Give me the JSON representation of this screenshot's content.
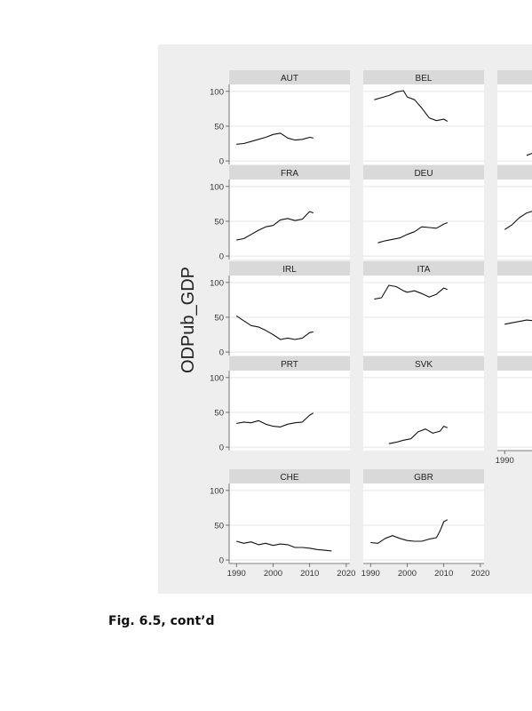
{
  "figure": {
    "ylabel": "ODPub_GDP",
    "caption": "Fig. 6.5, cont’d",
    "x_ticks": [
      1990,
      2000,
      2010,
      2020
    ],
    "y_ticks": [
      0,
      50,
      100
    ]
  },
  "chart_data": [
    {
      "type": "line",
      "title": "AUT",
      "ylim": [
        -5,
        110
      ],
      "xlim": [
        1988,
        2021
      ],
      "x": [
        1990,
        1992,
        1994,
        1996,
        1998,
        2000,
        2002,
        2004,
        2006,
        2008,
        2010,
        2011
      ],
      "values": [
        24,
        25,
        28,
        31,
        34,
        38,
        40,
        33,
        30,
        31,
        34,
        33
      ]
    },
    {
      "type": "line",
      "title": "BEL",
      "ylim": [
        -5,
        110
      ],
      "xlim": [
        1988,
        2021
      ],
      "x": [
        1991,
        1993,
        1995,
        1997,
        1999,
        2000,
        2002,
        2004,
        2006,
        2008,
        2010,
        2011
      ],
      "values": [
        88,
        91,
        94,
        99,
        101,
        92,
        88,
        76,
        62,
        58,
        60,
        57
      ]
    },
    {
      "type": "line",
      "title": "",
      "ylim": [
        -5,
        110
      ],
      "xlim": [
        1988,
        2021
      ],
      "x": [
        1996,
        1998,
        2000
      ],
      "values": [
        8,
        12,
        20
      ]
    },
    {
      "type": "line",
      "title": "FRA",
      "ylim": [
        -5,
        110
      ],
      "xlim": [
        1988,
        2021
      ],
      "x": [
        1990,
        1992,
        1994,
        1996,
        1998,
        2000,
        2002,
        2004,
        2006,
        2008,
        2010,
        2011
      ],
      "values": [
        23,
        25,
        31,
        37,
        42,
        44,
        52,
        54,
        51,
        53,
        64,
        62
      ]
    },
    {
      "type": "line",
      "title": "DEU",
      "ylim": [
        -5,
        110
      ],
      "xlim": [
        1988,
        2021
      ],
      "x": [
        1992,
        1994,
        1996,
        1998,
        2000,
        2002,
        2004,
        2006,
        2008,
        2010,
        2011
      ],
      "values": [
        19,
        22,
        24,
        26,
        31,
        35,
        42,
        41,
        40,
        46,
        48
      ]
    },
    {
      "type": "line",
      "title": "",
      "ylim": [
        -5,
        110
      ],
      "xlim": [
        1988,
        2021
      ],
      "x": [
        1990,
        1992,
        1994,
        1996,
        1998,
        2000
      ],
      "values": [
        38,
        45,
        55,
        62,
        65,
        68
      ]
    },
    {
      "type": "line",
      "title": "IRL",
      "ylim": [
        -5,
        110
      ],
      "xlim": [
        1988,
        2021
      ],
      "x": [
        1990,
        1992,
        1994,
        1996,
        1998,
        2000,
        2002,
        2004,
        2006,
        2008,
        2010,
        2011
      ],
      "values": [
        52,
        45,
        38,
        36,
        31,
        25,
        18,
        20,
        18,
        20,
        28,
        29
      ]
    },
    {
      "type": "line",
      "title": "ITA",
      "ylim": [
        -5,
        110
      ],
      "xlim": [
        1988,
        2021
      ],
      "x": [
        1991,
        1993,
        1995,
        1997,
        1999,
        2000,
        2002,
        2004,
        2006,
        2008,
        2010,
        2011
      ],
      "values": [
        76,
        78,
        96,
        94,
        88,
        86,
        88,
        84,
        79,
        83,
        92,
        90
      ]
    },
    {
      "type": "line",
      "title": "",
      "ylim": [
        -5,
        110
      ],
      "xlim": [
        1988,
        2021
      ],
      "x": [
        1990,
        1992,
        1994,
        1996,
        1998,
        2000
      ],
      "values": [
        40,
        42,
        44,
        46,
        45,
        46
      ]
    },
    {
      "type": "line",
      "title": "PRT",
      "ylim": [
        -5,
        110
      ],
      "xlim": [
        1988,
        2021
      ],
      "x": [
        1990,
        1992,
        1994,
        1996,
        1998,
        2000,
        2002,
        2004,
        2006,
        2008,
        2010,
        2011
      ],
      "values": [
        34,
        36,
        35,
        38,
        33,
        30,
        29,
        33,
        35,
        36,
        46,
        49
      ]
    },
    {
      "type": "line",
      "title": "SVK",
      "ylim": [
        -5,
        110
      ],
      "xlim": [
        1988,
        2021
      ],
      "x": [
        1995,
        1997,
        1999,
        2001,
        2003,
        2005,
        2007,
        2009,
        2010,
        2011
      ],
      "values": [
        5,
        7,
        10,
        12,
        22,
        26,
        20,
        23,
        30,
        28
      ]
    },
    {
      "type": "line",
      "title": "",
      "ylim": [
        -5,
        110
      ],
      "xlim": [
        1988,
        2021
      ],
      "x": [],
      "values": []
    },
    {
      "type": "line",
      "title": "CHE",
      "ylim": [
        -5,
        110
      ],
      "xlim": [
        1988,
        2021
      ],
      "x": [
        1990,
        1992,
        1994,
        1996,
        1998,
        2000,
        2002,
        2004,
        2006,
        2008,
        2010,
        2012,
        2014,
        2016
      ],
      "values": [
        27,
        24,
        26,
        22,
        24,
        21,
        23,
        22,
        18,
        18,
        17,
        15,
        14,
        13
      ]
    },
    {
      "type": "line",
      "title": "GBR",
      "ylim": [
        -5,
        110
      ],
      "xlim": [
        1988,
        2021
      ],
      "x": [
        1990,
        1992,
        1994,
        1996,
        1998,
        2000,
        2002,
        2004,
        2006,
        2008,
        2009,
        2010,
        2011
      ],
      "values": [
        25,
        24,
        31,
        35,
        31,
        28,
        27,
        27,
        30,
        32,
        42,
        55,
        58
      ]
    }
  ]
}
